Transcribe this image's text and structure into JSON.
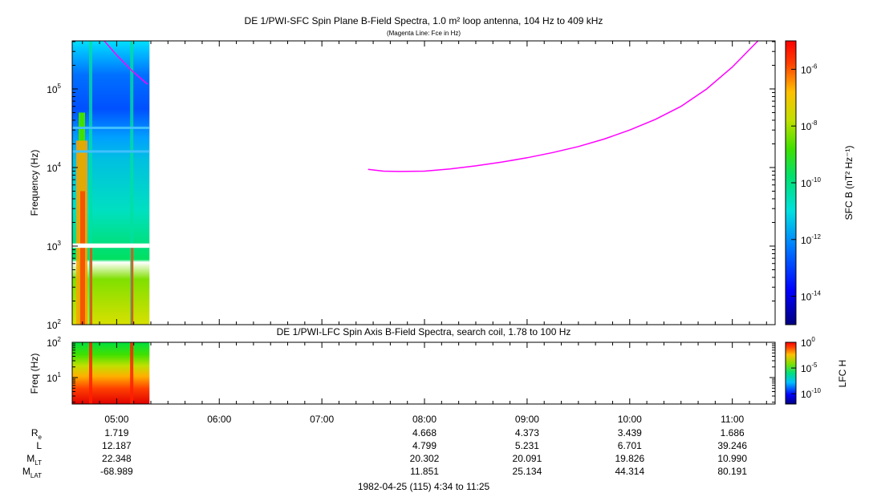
{
  "chart_data": [
    {
      "type": "heatmap",
      "title": "DE 1/PWI-SFC  Spin Plane B-Field Spectra, 1.0 m² loop antenna, 104 Hz to 409 kHz",
      "subtitle": "(Magenta Line: Fce in Hz)",
      "ylabel": "Frequency (Hz)",
      "yscale": "log",
      "ylim": [
        100,
        409000
      ],
      "y_ticks": [
        {
          "label": "10",
          "exp": "2",
          "value": 100
        },
        {
          "label": "10",
          "exp": "3",
          "value": 1000
        },
        {
          "label": "10",
          "exp": "4",
          "value": 10000
        },
        {
          "label": "10",
          "exp": "5",
          "value": 100000
        }
      ],
      "data_extent_hours": [
        4.567,
        5.32
      ],
      "data_gap_hz": [
        950,
        1080
      ],
      "colorbar": {
        "label": "SFC B (nT² Hz⁻¹)",
        "scale": "log",
        "range": [
          1e-15,
          1e-05
        ],
        "ticks": [
          {
            "label": "10",
            "exp": "-6",
            "value": 1e-06
          },
          {
            "label": "10",
            "exp": "-8",
            "value": 1e-08
          },
          {
            "label": "10",
            "exp": "-10",
            "value": 1e-10
          },
          {
            "label": "10",
            "exp": "-12",
            "value": 1e-12
          },
          {
            "label": "10",
            "exp": "-14",
            "value": 1e-14
          }
        ]
      },
      "fce_line": {
        "name": "Fce",
        "color": "#ff00ff",
        "segments": [
          [
            [
              4.88,
              409000
            ],
            [
              5.0,
              270000
            ],
            [
              5.15,
              170000
            ],
            [
              5.3,
              115000
            ]
          ],
          [
            [
              7.45,
              9500
            ],
            [
              7.6,
              9000
            ],
            [
              7.75,
              8900
            ],
            [
              8.0,
              9000
            ],
            [
              8.25,
              9600
            ],
            [
              8.5,
              10500
            ],
            [
              8.75,
              11700
            ],
            [
              9.0,
              13300
            ],
            [
              9.25,
              15500
            ],
            [
              9.5,
              18500
            ],
            [
              9.75,
              23000
            ],
            [
              10.0,
              30000
            ],
            [
              10.25,
              41000
            ],
            [
              10.5,
              60000
            ],
            [
              10.75,
              100000
            ],
            [
              11.0,
              190000
            ],
            [
              11.25,
              409000
            ]
          ]
        ]
      }
    },
    {
      "type": "heatmap",
      "title": "DE 1/PWI-LFC  Spin Axis B-Field Spectra, search coil, 1.78 to 100 Hz",
      "ylabel": "Freq (Hz)",
      "yscale": "log",
      "ylim": [
        1.78,
        100
      ],
      "y_ticks": [
        {
          "label": "10",
          "exp": "1",
          "value": 10
        },
        {
          "label": "10",
          "exp": "2",
          "value": 100
        }
      ],
      "data_extent_hours": [
        4.567,
        5.32
      ],
      "colorbar": {
        "label": "LFC H",
        "scale": "log",
        "range": [
          1e-12,
          1
        ],
        "ticks": [
          {
            "label": "10",
            "exp": "0",
            "value": 1
          },
          {
            "label": "10",
            "exp": "-5",
            "value": 1e-05
          },
          {
            "label": "10",
            "exp": "-10",
            "value": 1e-10
          }
        ]
      }
    }
  ],
  "time_axis": {
    "range_hours": [
      4.567,
      11.417
    ],
    "ticks": [
      {
        "label": "05:00",
        "value": 5
      },
      {
        "label": "06:00",
        "value": 6
      },
      {
        "label": "07:00",
        "value": 7
      },
      {
        "label": "08:00",
        "value": 8
      },
      {
        "label": "09:00",
        "value": 9
      },
      {
        "label": "10:00",
        "value": 10
      },
      {
        "label": "11:00",
        "value": 11
      }
    ],
    "minor_step_minutes": 10,
    "footer": "1982-04-25 (115) 4:34 to 11:25"
  },
  "ephemeris": {
    "labels": [
      {
        "base": "R",
        "sub": "e"
      },
      {
        "base": "L",
        "sub": ""
      },
      {
        "base": "M",
        "sub": "LT"
      },
      {
        "base": "M",
        "sub": "LAT"
      }
    ],
    "columns": [
      {
        "hour": 5,
        "values": [
          "1.719",
          "12.187",
          "22.348",
          "-68.989"
        ]
      },
      {
        "hour": 8,
        "values": [
          "4.668",
          "4.799",
          "20.302",
          "11.851"
        ]
      },
      {
        "hour": 9,
        "values": [
          "4.373",
          "5.231",
          "20.091",
          "25.134"
        ]
      },
      {
        "hour": 10,
        "values": [
          "3.439",
          "6.701",
          "19.826",
          "44.314"
        ]
      },
      {
        "hour": 11,
        "values": [
          "1.686",
          "39.246",
          "10.990",
          "80.191"
        ]
      }
    ]
  }
}
